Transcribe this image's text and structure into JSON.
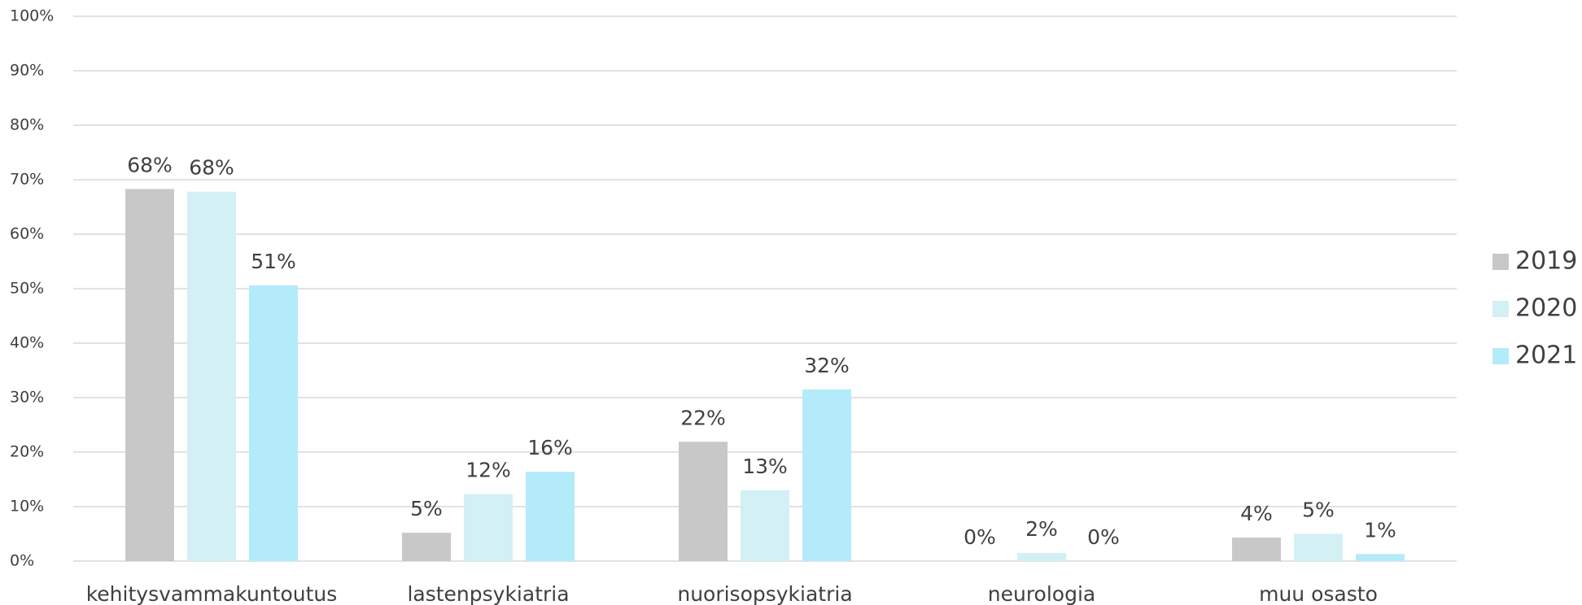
{
  "chart_data": {
    "type": "bar",
    "categories": [
      "kehitysvammakuntoutus",
      "lastenpsykiatria",
      "nuorisopsykiatria",
      "neurologia",
      "muu osasto"
    ],
    "series": [
      {
        "name": "2019",
        "color": "#c8c8c8",
        "values": [
          68.3,
          5.2,
          21.9,
          0,
          4.3
        ],
        "value_labels": [
          "68%",
          "5%",
          "22%",
          "0%",
          "4%"
        ]
      },
      {
        "name": "2020",
        "color": "#d3f0f4",
        "values": [
          67.8,
          12.3,
          13.0,
          1.5,
          5.0
        ],
        "value_labels": [
          "68%",
          "12%",
          "13%",
          "2%",
          "5%"
        ]
      },
      {
        "name": "2021",
        "color": "#b3ebfb",
        "values": [
          50.6,
          16.4,
          31.5,
          0,
          1.3
        ],
        "value_labels": [
          "51%",
          "16%",
          "32%",
          "0%",
          "1%"
        ]
      }
    ],
    "ylim": [
      0,
      100
    ],
    "yticks": [
      {
        "value": 0,
        "label": "0%"
      },
      {
        "value": 10,
        "label": "10%"
      },
      {
        "value": 20,
        "label": "20%"
      },
      {
        "value": 30,
        "label": "30%"
      },
      {
        "value": 40,
        "label": "40%"
      },
      {
        "value": 50,
        "label": "50%"
      },
      {
        "value": 60,
        "label": "60%"
      },
      {
        "value": 70,
        "label": "70%"
      },
      {
        "value": 80,
        "label": "80%"
      },
      {
        "value": 90,
        "label": "90%"
      },
      {
        "value": 100,
        "label": "100%"
      }
    ],
    "grid": true,
    "legend": "right"
  }
}
